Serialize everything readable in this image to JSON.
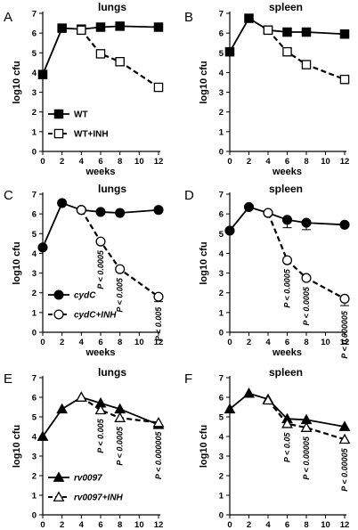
{
  "chart_data": [
    {
      "type": "line",
      "panel": "A",
      "title": "lungs",
      "xlabel": "weeks",
      "ylabel": "log10 cfu",
      "xlim": [
        0,
        12
      ],
      "ylim": [
        0,
        7
      ],
      "xticks": [
        0,
        2,
        4,
        6,
        8,
        10,
        12
      ],
      "yticks": [
        0,
        1,
        2,
        3,
        4,
        5,
        6,
        7
      ],
      "legend": "bottom-left",
      "series": [
        {
          "name": "WT",
          "marker": "square",
          "filled": true,
          "dashed": false,
          "x": [
            0,
            2,
            4,
            6,
            8,
            12
          ],
          "y": [
            3.9,
            6.25,
            6.2,
            6.3,
            6.35,
            6.3
          ],
          "err": [
            0,
            0,
            0,
            0,
            0,
            0
          ]
        },
        {
          "name": "WT+INH",
          "marker": "square",
          "filled": false,
          "dashed": true,
          "x": [
            4,
            6,
            8,
            12
          ],
          "y": [
            6.15,
            4.95,
            4.55,
            3.25
          ],
          "err": [
            0,
            0,
            0,
            0
          ]
        }
      ],
      "annotations": []
    },
    {
      "type": "line",
      "panel": "B",
      "title": "spleen",
      "xlabel": "weeks",
      "ylabel": "log10 cfu",
      "xlim": [
        0,
        12
      ],
      "ylim": [
        0,
        7
      ],
      "xticks": [
        0,
        2,
        4,
        6,
        8,
        10,
        12
      ],
      "yticks": [
        0,
        1,
        2,
        3,
        4,
        5,
        6,
        7
      ],
      "legend": "none",
      "series": [
        {
          "name": "WT",
          "marker": "square",
          "filled": true,
          "dashed": false,
          "x": [
            0,
            2,
            4,
            6,
            8,
            12
          ],
          "y": [
            5.05,
            6.75,
            6.15,
            6.05,
            6.05,
            5.95
          ],
          "err": [
            0,
            0,
            0,
            0,
            0,
            0
          ]
        },
        {
          "name": "WT+INH",
          "marker": "square",
          "filled": false,
          "dashed": true,
          "x": [
            4,
            6,
            8,
            12
          ],
          "y": [
            6.15,
            5.05,
            4.4,
            3.65
          ],
          "err": [
            0,
            0,
            0,
            0
          ]
        }
      ],
      "annotations": []
    },
    {
      "type": "line",
      "panel": "C",
      "title": "lungs",
      "xlabel": "weeks",
      "ylabel": "log10 cfu",
      "xlim": [
        0,
        12
      ],
      "ylim": [
        0,
        7
      ],
      "xticks": [
        0,
        2,
        4,
        6,
        8,
        10,
        12
      ],
      "yticks": [
        0,
        1,
        2,
        3,
        4,
        5,
        6,
        7
      ],
      "legend": "bottom-left",
      "series": [
        {
          "name": "cydC",
          "marker": "circle",
          "filled": true,
          "dashed": false,
          "x": [
            0,
            2,
            4,
            6,
            8,
            12
          ],
          "y": [
            4.3,
            6.55,
            6.2,
            6.1,
            6.05,
            6.2
          ],
          "err": [
            0,
            0,
            0,
            0,
            0,
            0
          ]
        },
        {
          "name": "cydC+INH",
          "marker": "circle",
          "filled": false,
          "dashed": true,
          "x": [
            4,
            6,
            8,
            12
          ],
          "y": [
            6.2,
            4.6,
            3.2,
            1.8
          ],
          "err": [
            0,
            0,
            0,
            0.25
          ]
        }
      ],
      "annotations": [
        {
          "text": "P < 0.0005",
          "x": 6
        },
        {
          "text": "P < 0.005",
          "x": 8
        },
        {
          "text": "P < 0.005",
          "x": 12
        }
      ]
    },
    {
      "type": "line",
      "panel": "D",
      "title": "spleen",
      "xlabel": "weeks",
      "ylabel": "log10 cfu",
      "xlim": [
        0,
        12
      ],
      "ylim": [
        0,
        7
      ],
      "xticks": [
        0,
        2,
        4,
        6,
        8,
        10,
        12
      ],
      "yticks": [
        0,
        1,
        2,
        3,
        4,
        5,
        6,
        7
      ],
      "legend": "none",
      "series": [
        {
          "name": "cydC",
          "marker": "circle",
          "filled": true,
          "dashed": false,
          "x": [
            0,
            2,
            4,
            6,
            8,
            12
          ],
          "y": [
            5.15,
            6.35,
            6.05,
            5.7,
            5.55,
            5.45
          ],
          "err": [
            0,
            0,
            0,
            0.4,
            0.35,
            0
          ]
        },
        {
          "name": "cydC+INH",
          "marker": "circle",
          "filled": false,
          "dashed": true,
          "x": [
            4,
            6,
            8,
            12
          ],
          "y": [
            6.05,
            3.65,
            2.75,
            1.7
          ],
          "err": [
            0,
            0,
            0,
            0.35
          ]
        }
      ],
      "annotations": [
        {
          "text": "P < 0.0005",
          "x": 6
        },
        {
          "text": "P < 0.0005",
          "x": 8
        },
        {
          "text": "P < 0.000005",
          "x": 12
        }
      ]
    },
    {
      "type": "line",
      "panel": "E",
      "title": "lungs",
      "xlabel": "weeks",
      "ylabel": "log10 cfu",
      "xlim": [
        0,
        12
      ],
      "ylim": [
        0,
        7
      ],
      "xticks": [
        0,
        2,
        4,
        6,
        8,
        10,
        12
      ],
      "yticks": [
        0,
        1,
        2,
        3,
        4,
        5,
        6,
        7
      ],
      "legend": "bottom-left",
      "series": [
        {
          "name": "rv0097",
          "marker": "triangle",
          "filled": true,
          "dashed": false,
          "x": [
            0,
            2,
            4,
            6,
            8,
            12
          ],
          "y": [
            4.0,
            5.4,
            6.0,
            5.7,
            5.4,
            4.6
          ],
          "err": [
            0,
            0,
            0,
            0,
            0,
            0
          ]
        },
        {
          "name": "rv0097+INH",
          "marker": "triangle",
          "filled": false,
          "dashed": true,
          "x": [
            4,
            6,
            8,
            12
          ],
          "y": [
            6.0,
            5.35,
            4.95,
            4.7
          ],
          "err": [
            0,
            0,
            0,
            0
          ]
        }
      ],
      "annotations": [
        {
          "text": "P < 0.005",
          "x": 6
        },
        {
          "text": "P < 0.0005",
          "x": 8
        },
        {
          "text": "P < 0.000005",
          "x": 12
        }
      ]
    },
    {
      "type": "line",
      "panel": "F",
      "title": "spleen",
      "xlabel": "weeks",
      "ylabel": "log10 cfu",
      "xlim": [
        0,
        12
      ],
      "ylim": [
        0,
        7
      ],
      "xticks": [
        0,
        2,
        4,
        6,
        8,
        10,
        12
      ],
      "yticks": [
        0,
        1,
        2,
        3,
        4,
        5,
        6,
        7
      ],
      "legend": "none",
      "series": [
        {
          "name": "rv0097",
          "marker": "triangle",
          "filled": true,
          "dashed": false,
          "x": [
            0,
            2,
            4,
            6,
            8,
            12
          ],
          "y": [
            5.4,
            6.2,
            5.9,
            4.9,
            4.85,
            4.5
          ],
          "err": [
            0,
            0,
            0,
            0,
            0,
            0
          ]
        },
        {
          "name": "rv0097+INH",
          "marker": "triangle",
          "filled": false,
          "dashed": true,
          "x": [
            4,
            6,
            8,
            12
          ],
          "y": [
            5.85,
            4.65,
            4.45,
            3.85
          ],
          "err": [
            0,
            0,
            0,
            0
          ]
        }
      ],
      "annotations": [
        {
          "text": "P < 0.05",
          "x": 6
        },
        {
          "text": "P < 0.00005",
          "x": 8
        },
        {
          "text": "P < 0.00005",
          "x": 12
        }
      ]
    }
  ]
}
